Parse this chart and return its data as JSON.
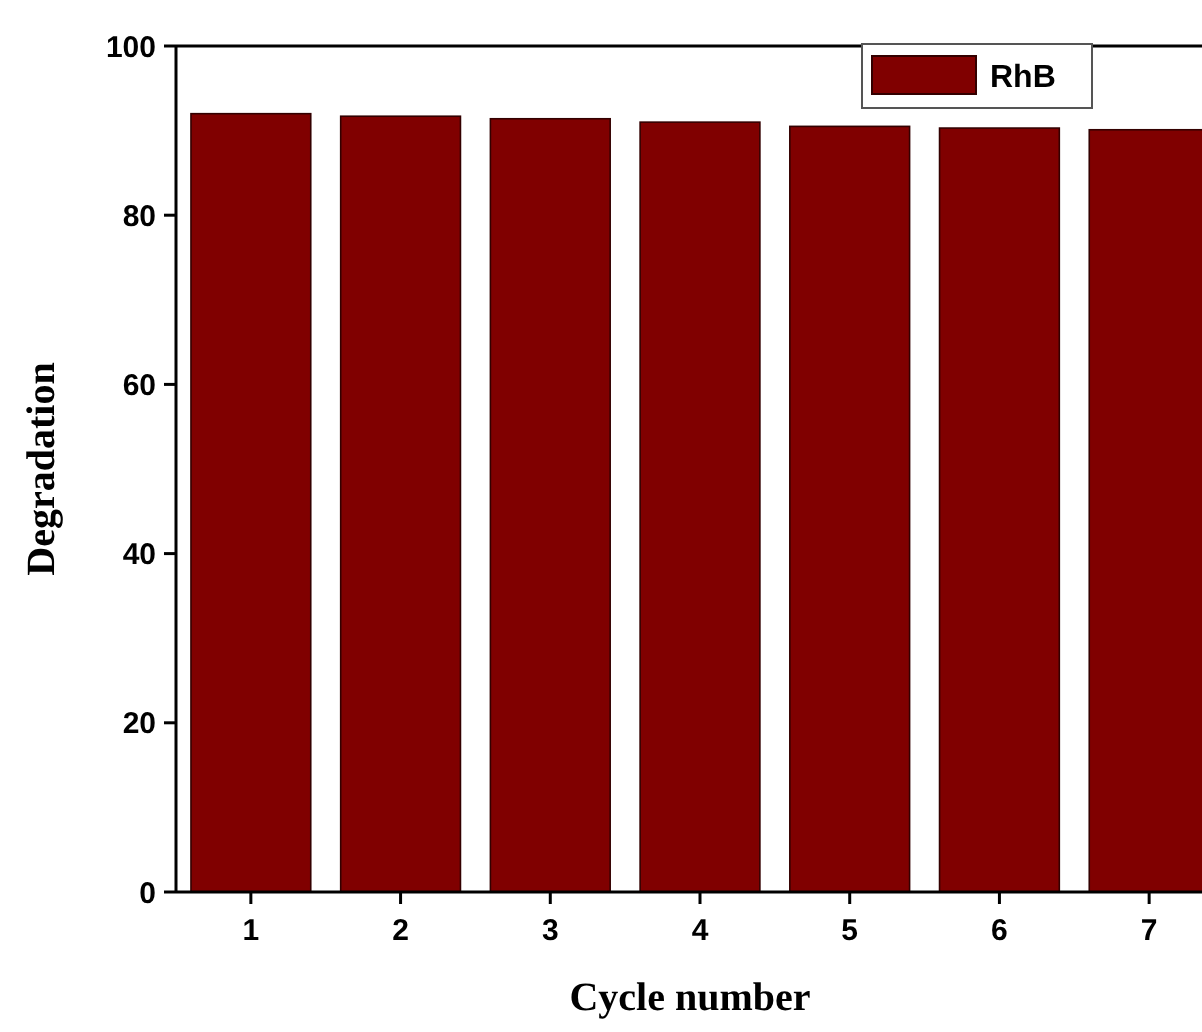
{
  "chart_data": {
    "type": "bar",
    "xlabel": "Cycle number",
    "ylabel": "Degradation",
    "categories": [
      "1",
      "2",
      "3",
      "4",
      "5",
      "6",
      "7"
    ],
    "series": [
      {
        "name": "RhB",
        "color": "#800000",
        "values": [
          92.0,
          91.7,
          91.4,
          91.0,
          90.5,
          90.3,
          90.1
        ]
      }
    ],
    "ylim": [
      0,
      100
    ],
    "yticks": [
      0,
      20,
      40,
      60,
      80,
      100
    ],
    "legend": "top right",
    "grid": false
  }
}
